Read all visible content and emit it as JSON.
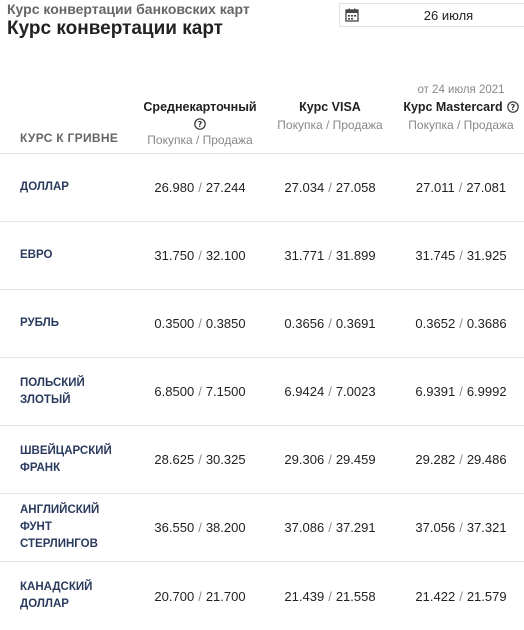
{
  "breadcrumb": "Курс конвертации банковских карт",
  "title": "Курс конвертации карт",
  "date_picker": {
    "icon": "calendar-icon",
    "value": "26 июля"
  },
  "note": "от 24 июля 2021",
  "table": {
    "row_header": "КУРС К ГРИВНЕ",
    "columns": [
      {
        "title": "Среднекарточный",
        "subtitle": "Покупка / Продажа",
        "help": true
      },
      {
        "title": "Курс VISA",
        "subtitle": "Покупка / Продажа",
        "help": false
      },
      {
        "title": "Курс Mastercard",
        "subtitle": "Покупка / Продажа",
        "help": true
      }
    ],
    "rows": [
      {
        "currency": "ДОЛЛАР",
        "values": [
          [
            "26.980",
            "27.244"
          ],
          [
            "27.034",
            "27.058"
          ],
          [
            "27.011",
            "27.081"
          ]
        ]
      },
      {
        "currency": "ЕВРО",
        "values": [
          [
            "31.750",
            "32.100"
          ],
          [
            "31.771",
            "31.899"
          ],
          [
            "31.745",
            "31.925"
          ]
        ]
      },
      {
        "currency": "РУБЛЬ",
        "values": [
          [
            "0.3500",
            "0.3850"
          ],
          [
            "0.3656",
            "0.3691"
          ],
          [
            "0.3652",
            "0.3686"
          ]
        ]
      },
      {
        "currency": "ПОЛЬСКИЙ ЗЛОТЫЙ",
        "values": [
          [
            "6.8500",
            "7.1500"
          ],
          [
            "6.9424",
            "7.0023"
          ],
          [
            "6.9391",
            "6.9992"
          ]
        ]
      },
      {
        "currency": "ШВЕЙЦАРСКИЙ ФРАНК",
        "values": [
          [
            "28.625",
            "30.325"
          ],
          [
            "29.306",
            "29.459"
          ],
          [
            "29.282",
            "29.486"
          ]
        ]
      },
      {
        "currency": "АНГЛИЙСКИЙ ФУНТ СТЕРЛИНГОВ",
        "values": [
          [
            "36.550",
            "38.200"
          ],
          [
            "37.086",
            "37.291"
          ],
          [
            "37.056",
            "37.321"
          ]
        ]
      },
      {
        "currency": "КАНАДСКИЙ ДОЛЛАР",
        "values": [
          [
            "20.700",
            "21.700"
          ],
          [
            "21.439",
            "21.558"
          ],
          [
            "21.422",
            "21.579"
          ]
        ]
      }
    ]
  }
}
